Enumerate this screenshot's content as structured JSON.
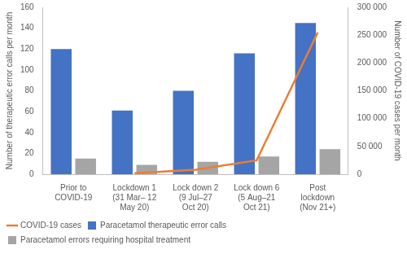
{
  "chart_data": {
    "type": "bar",
    "categories": [
      "Prior to COVID-19",
      "Lockdown 1 (31 Mar– 12 May 20)",
      "Lock down 2 (9 Jul–27 Oct 20)",
      "Lock down 6 (5 Aug–21 Oct 21)",
      "Post lockdown (Nov 21+)"
    ],
    "y_label": "Number of therapeutic error calls per month",
    "y2_label": "Number of COVID-19 cases per month",
    "series": [
      {
        "name": "Paracetamol therapeutic error calls",
        "color": "#4472c4",
        "values": [
          120,
          61,
          80,
          116,
          145
        ]
      },
      {
        "name": "Paracetamol errors requiring hospital treatment",
        "color": "#a5a5a5",
        "values": [
          15,
          9,
          12,
          17,
          24
        ]
      },
      {
        "name": "COVID-19 cases",
        "color": "#ed7d31",
        "type": "line",
        "marker": "none",
        "axis": "y2",
        "values": [
          null,
          2000,
          8000,
          25000,
          255000
        ]
      }
    ],
    "ylim": [
      0,
      160
    ],
    "yticks": [
      0,
      20,
      40,
      60,
      80,
      100,
      120,
      140,
      160
    ],
    "y2lim": [
      0,
      300000
    ],
    "y2ticks": [
      0,
      {
        "value": 50000,
        "label": "50 000"
      },
      {
        "value": 100000,
        "label": "100 000"
      },
      {
        "value": 150000,
        "label": "150 000"
      },
      {
        "value": 200000,
        "label": "200 000"
      },
      {
        "value": 250000,
        "label": "250 000"
      },
      {
        "value": 300000,
        "label": "300 000"
      }
    ],
    "grid": false,
    "legend": "bottom"
  }
}
